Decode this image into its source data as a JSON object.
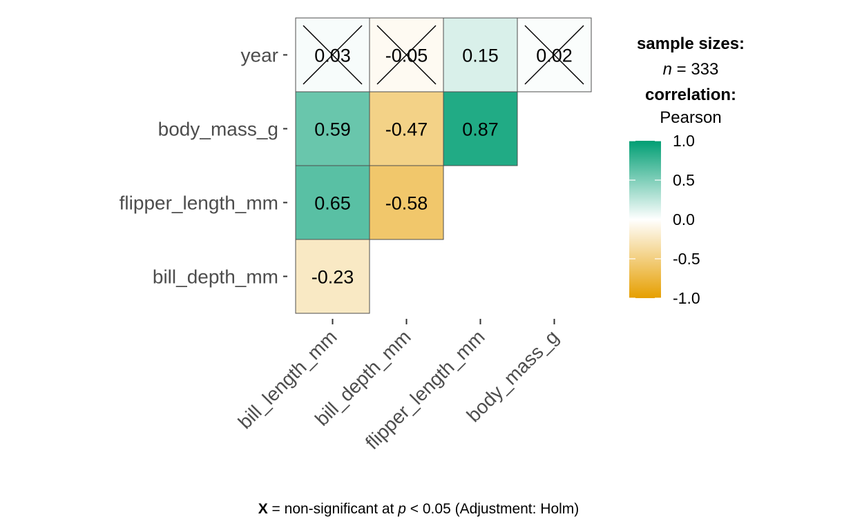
{
  "chart_data": {
    "type": "heatmap",
    "x_categories": [
      "bill_length_mm",
      "bill_depth_mm",
      "flipper_length_mm",
      "body_mass_g"
    ],
    "y_categories": [
      "year",
      "body_mass_g",
      "flipper_length_mm",
      "bill_depth_mm"
    ],
    "cells": [
      {
        "x": "bill_length_mm",
        "y": "year",
        "value": 0.03,
        "label": "0.03",
        "significant": false
      },
      {
        "x": "bill_depth_mm",
        "y": "year",
        "value": -0.05,
        "label": "-0.05",
        "significant": false
      },
      {
        "x": "flipper_length_mm",
        "y": "year",
        "value": 0.15,
        "label": "0.15",
        "significant": true
      },
      {
        "x": "body_mass_g",
        "y": "year",
        "value": 0.02,
        "label": "0.02",
        "significant": false
      },
      {
        "x": "bill_length_mm",
        "y": "body_mass_g",
        "value": 0.59,
        "label": "0.59",
        "significant": true
      },
      {
        "x": "bill_depth_mm",
        "y": "body_mass_g",
        "value": -0.47,
        "label": "-0.47",
        "significant": true
      },
      {
        "x": "flipper_length_mm",
        "y": "body_mass_g",
        "value": 0.87,
        "label": "0.87",
        "significant": true
      },
      {
        "x": "bill_length_mm",
        "y": "flipper_length_mm",
        "value": 0.65,
        "label": "0.65",
        "significant": true
      },
      {
        "x": "bill_depth_mm",
        "y": "flipper_length_mm",
        "value": -0.58,
        "label": "-0.58",
        "significant": true
      },
      {
        "x": "bill_length_mm",
        "y": "bill_depth_mm",
        "value": -0.23,
        "label": "-0.23",
        "significant": true
      }
    ],
    "legend": {
      "title_line1": "sample sizes:",
      "n_label": "n",
      "n_value": "= 333",
      "title_line3": "correlation:",
      "title_line4": "Pearson",
      "ticks": [
        {
          "value": 1.0,
          "label": "1.0"
        },
        {
          "value": 0.5,
          "label": "0.5"
        },
        {
          "value": 0.0,
          "label": "0.0"
        },
        {
          "value": -0.5,
          "label": "-0.5"
        },
        {
          "value": -1.0,
          "label": "-1.0"
        }
      ],
      "range": [
        -1.0,
        1.0
      ],
      "colors": {
        "low": "#E69F00",
        "mid": "#FFFFFF",
        "high": "#009E73"
      }
    },
    "caption": {
      "marker": "X",
      "text1": " = non-significant at ",
      "p": "p",
      "text2": " < 0.05 (Adjustment: Holm)"
    }
  }
}
